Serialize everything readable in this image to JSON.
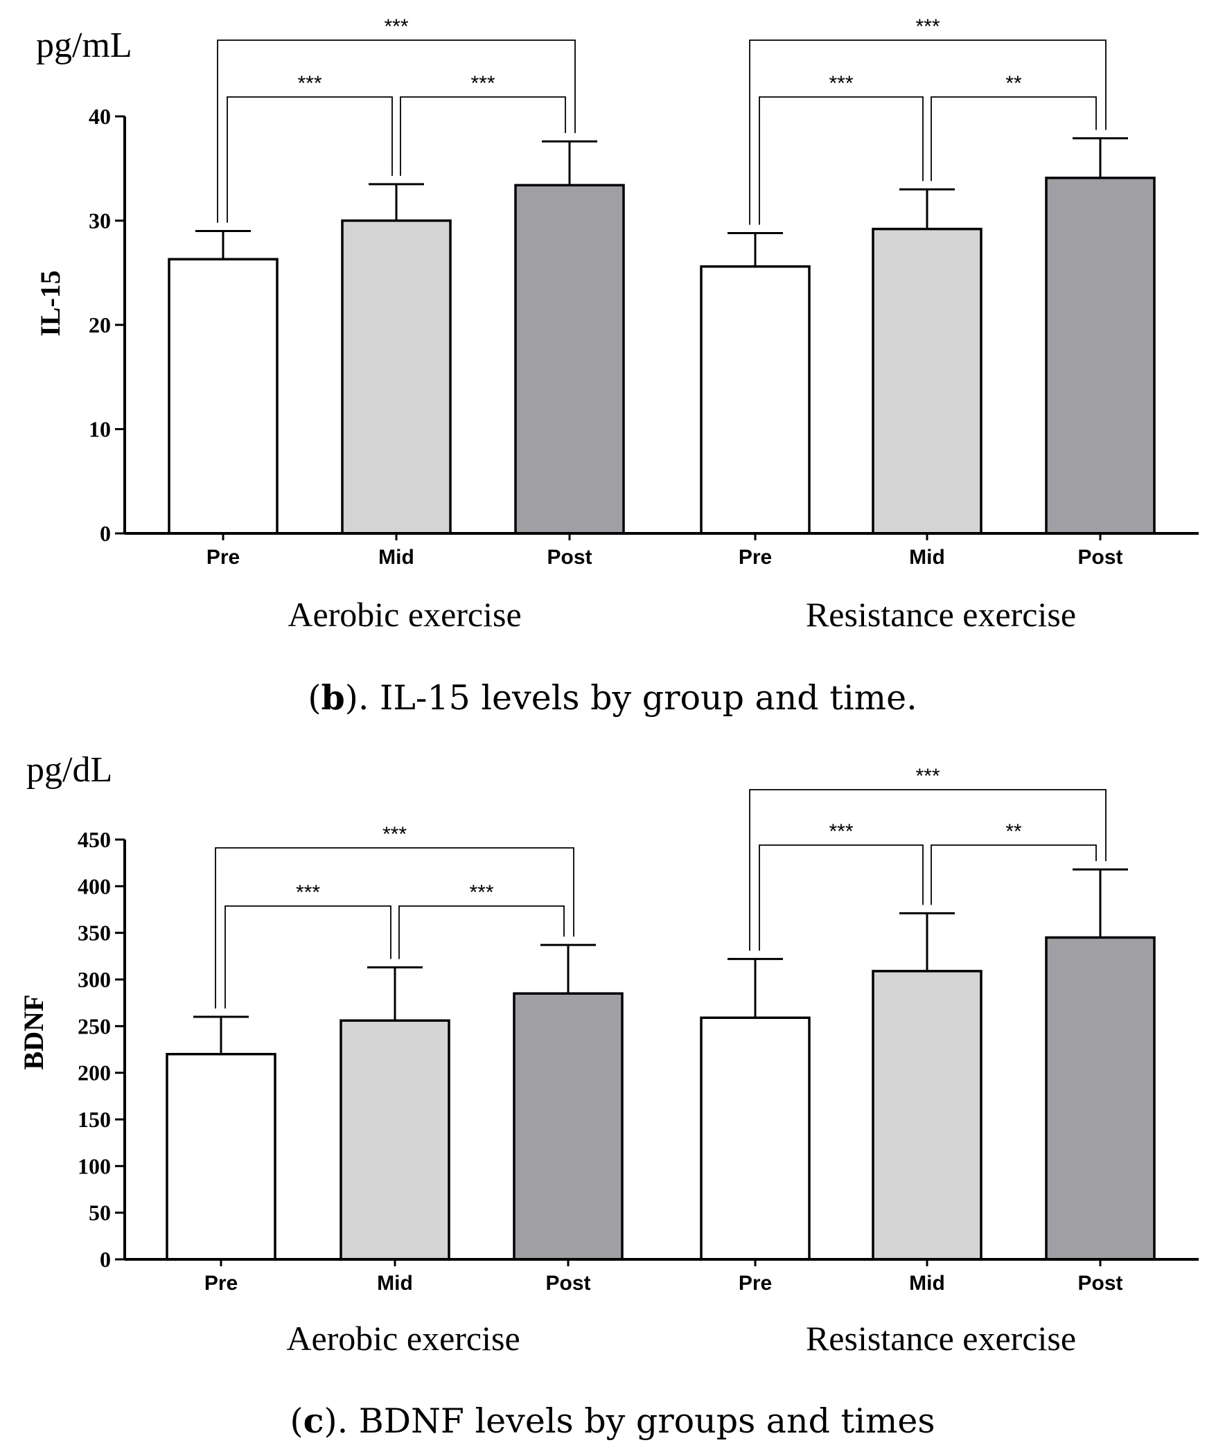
{
  "colors": {
    "pre": "#ffffff",
    "mid": "#d4d4d4",
    "post": "#a09fa4",
    "axis": "#000000"
  },
  "chart_data": [
    {
      "id": "il15",
      "type": "bar",
      "unit": "pg/mL",
      "ylabel": "IL-15",
      "ylim": [
        0,
        40
      ],
      "yticks": [
        "0",
        "10",
        "20",
        "30",
        "40"
      ],
      "categories": [
        "Pre",
        "Mid",
        "Post",
        "Pre",
        "Mid",
        "Post"
      ],
      "groups": [
        "Aerobic exercise",
        "Resistance exercise"
      ],
      "values": [
        26.3,
        30.0,
        33.4,
        25.6,
        29.2,
        34.1
      ],
      "errors": [
        2.7,
        3.5,
        4.2,
        3.2,
        3.8,
        3.8
      ],
      "significance": [
        {
          "from": 0,
          "to": 2,
          "label": "***"
        },
        {
          "from": 0,
          "to": 1,
          "label": "***"
        },
        {
          "from": 1,
          "to": 2,
          "label": "***"
        },
        {
          "from": 3,
          "to": 5,
          "label": "***"
        },
        {
          "from": 3,
          "to": 4,
          "label": "***"
        },
        {
          "from": 4,
          "to": 5,
          "label": "**"
        }
      ],
      "caption_letter": "b",
      "caption_text": "). IL-15 levels by group and time."
    },
    {
      "id": "bdnf",
      "type": "bar",
      "unit": "pg/dL",
      "ylabel": "BDNF",
      "ylim": [
        0,
        450
      ],
      "yticks": [
        "0",
        "50",
        "100",
        "150",
        "200",
        "250",
        "300",
        "350",
        "400",
        "450"
      ],
      "categories": [
        "Pre",
        "Mid",
        "Post",
        "Pre",
        "Mid",
        "Post"
      ],
      "groups": [
        "Aerobic exercise",
        "Resistance exercise"
      ],
      "values": [
        220,
        256,
        285,
        259,
        309,
        345
      ],
      "errors": [
        40,
        57,
        52,
        63,
        62,
        73
      ],
      "significance": [
        {
          "from": 0,
          "to": 2,
          "label": "***"
        },
        {
          "from": 0,
          "to": 1,
          "label": "***"
        },
        {
          "from": 1,
          "to": 2,
          "label": "***"
        },
        {
          "from": 3,
          "to": 5,
          "label": "***"
        },
        {
          "from": 3,
          "to": 4,
          "label": "***"
        },
        {
          "from": 4,
          "to": 5,
          "label": "**"
        }
      ],
      "caption_letter": "c",
      "caption_text": "). BDNF levels by groups and times"
    }
  ]
}
